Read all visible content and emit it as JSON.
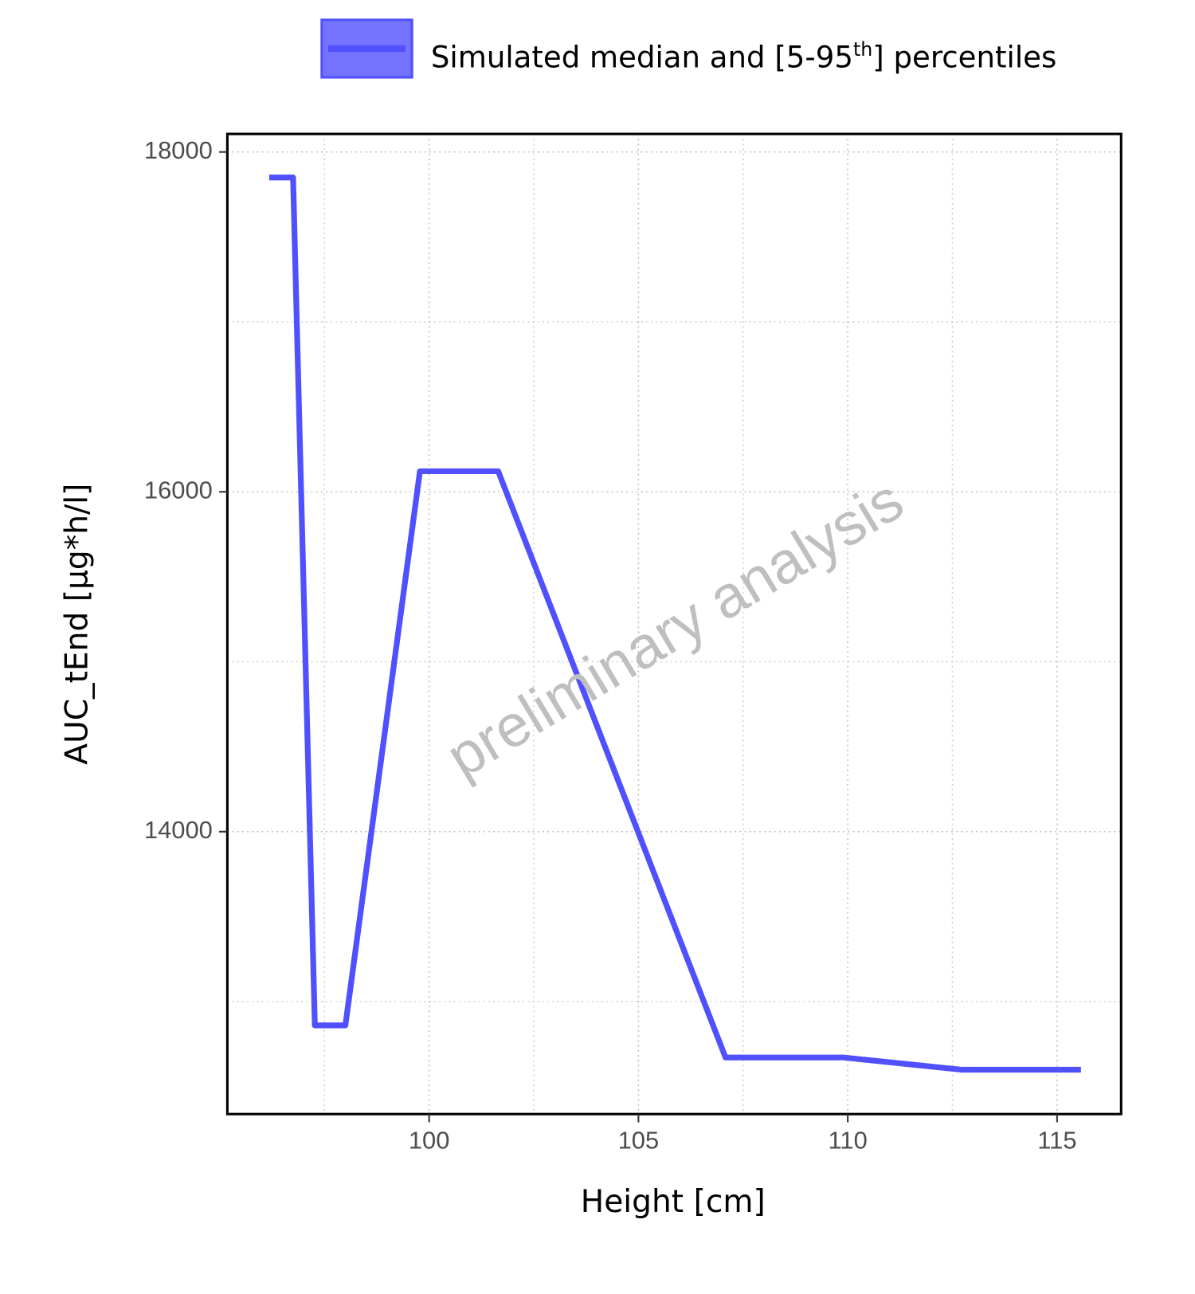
{
  "chart_data": {
    "type": "line",
    "x_label": "Height [cm]",
    "y_label": "AUC_tEnd [µg*h/l]",
    "annotation": "preliminary analysis",
    "x": [
      96.18,
      96.75,
      97.27,
      98.0,
      99.78,
      101.65,
      107.08,
      109.9,
      112.73,
      115.57
    ],
    "series": [
      {
        "name_parts": [
          "Simulated median and [5-95",
          "th",
          "] percentiles"
        ],
        "color": "#5050ff",
        "values": [
          17850,
          17850,
          12860,
          12860,
          16121,
          16121,
          12671,
          12671,
          12599,
          12599
        ]
      }
    ],
    "xlim": [
      95.18,
      116.53
    ],
    "xticks": [
      100,
      105,
      110,
      115
    ],
    "minor_xticks": [
      97.5,
      102.5,
      107.5,
      112.5
    ],
    "ylim": [
      12338,
      18106
    ],
    "yticks": [
      14000,
      16000,
      18000
    ],
    "minor_yticks": [
      13000,
      15000,
      17000
    ],
    "grid": true,
    "legend": "top"
  }
}
